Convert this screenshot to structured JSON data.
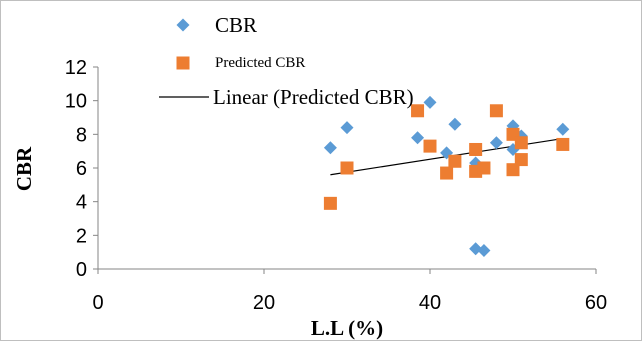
{
  "chart_data": {
    "type": "scatter",
    "xlabel": "L.L (%)",
    "ylabel": "CBR",
    "xlim": [
      0,
      60
    ],
    "ylim": [
      0,
      12
    ],
    "x_ticks": [
      "0",
      "20",
      "40",
      "60"
    ],
    "y_ticks": [
      "0",
      "2",
      "4",
      "6",
      "8",
      "10",
      "12"
    ],
    "grid": false,
    "legend_position": "top-center",
    "series": [
      {
        "name": "CBR",
        "marker": "diamond",
        "color": "#5b9bd5",
        "x": [
          28,
          30,
          38.5,
          40,
          42,
          43,
          45.5,
          45.5,
          46.5,
          48,
          50,
          50,
          51
        ],
        "y": [
          7.2,
          8.4,
          7.8,
          9.9,
          6.9,
          8.6,
          6.3,
          1.2,
          1.1,
          7.5,
          8.5,
          7.1,
          7.9
        ]
      },
      {
        "name": "Predicted CBR",
        "marker": "square",
        "color": "#ed7d31",
        "x": [
          28,
          30,
          38.5,
          40,
          42,
          43,
          45.5,
          45.5,
          46.5,
          48,
          50,
          50,
          51,
          51,
          56
        ],
        "y": [
          3.9,
          6.0,
          9.4,
          7.3,
          5.7,
          6.4,
          7.1,
          5.8,
          6.0,
          9.4,
          8.0,
          5.9,
          7.5,
          6.5,
          7.4
        ]
      },
      {
        "name": "Linear (Predicted CBR)",
        "type": "line",
        "color": "#000000",
        "x": [
          28,
          56
        ],
        "y": [
          5.6,
          7.75
        ]
      }
    ],
    "extra_cbr_point": {
      "x": 56,
      "y": 8.3
    }
  }
}
